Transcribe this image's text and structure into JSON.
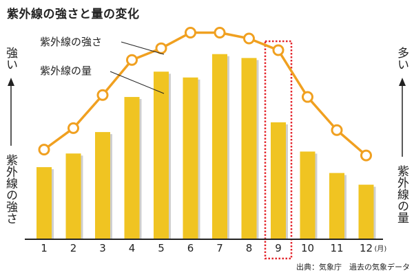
{
  "chart_data": {
    "type": "bar+line",
    "title": "紫外線の強さと量の変化",
    "categories": [
      "1",
      "2",
      "3",
      "4",
      "5",
      "6",
      "7",
      "8",
      "9",
      "10",
      "11",
      "12"
    ],
    "x_unit": "(月)",
    "series": [
      {
        "name": "紫外線の量",
        "type": "bar",
        "values": [
          3.7,
          4.4,
          5.5,
          7.3,
          8.6,
          8.3,
          9.5,
          9.3,
          6.0,
          4.5,
          3.4,
          2.8
        ]
      },
      {
        "name": "紫外線の強さ",
        "type": "line",
        "values": [
          4.6,
          5.7,
          7.4,
          9.2,
          9.8,
          10.6,
          10.6,
          10.3,
          9.7,
          7.3,
          5.6,
          4.3
        ]
      }
    ],
    "ylim": [
      0,
      11.5
    ],
    "highlight_category": "9",
    "left_axis_label": {
      "top": "強い",
      "bottom": "紫外線の強さ"
    },
    "right_axis_label": {
      "top": "多い",
      "bottom": "紫外線の量"
    },
    "annotations": {
      "line": "紫外線の強さ",
      "bar": "紫外線の量"
    },
    "source": "出典：気象庁　過去の気象データ",
    "colors": {
      "bar": "#f0c422",
      "bar_shadow": "#cfcfcf",
      "line": "#f0a020",
      "marker_fill": "#ffffff",
      "highlight": "#e3242b",
      "highlight_tick": "#9b7cc0",
      "axis": "#222222"
    }
  }
}
